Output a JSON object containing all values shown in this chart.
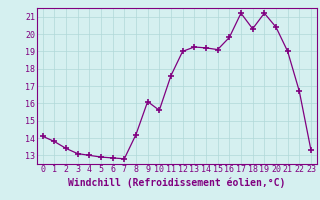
{
  "x": [
    0,
    1,
    2,
    3,
    4,
    5,
    6,
    7,
    8,
    9,
    10,
    11,
    12,
    13,
    14,
    15,
    16,
    17,
    18,
    19,
    20,
    21,
    22,
    23
  ],
  "y": [
    14.1,
    13.8,
    13.4,
    13.1,
    13.0,
    12.9,
    12.85,
    12.8,
    14.2,
    16.1,
    15.6,
    17.6,
    19.0,
    19.25,
    19.2,
    19.1,
    19.8,
    21.2,
    20.3,
    21.2,
    20.4,
    19.0,
    16.7,
    13.3
  ],
  "line_color": "#800080",
  "marker_color": "#800080",
  "bg_color": "#d5f0f0",
  "grid_color": "#b0d8d8",
  "xlabel": "Windchill (Refroidissement éolien,°C)",
  "xlabel_color": "#800080",
  "tick_color": "#800080",
  "ylim": [
    12.5,
    21.5
  ],
  "yticks": [
    13,
    14,
    15,
    16,
    17,
    18,
    19,
    20,
    21
  ],
  "xticks": [
    0,
    1,
    2,
    3,
    4,
    5,
    6,
    7,
    8,
    9,
    10,
    11,
    12,
    13,
    14,
    15,
    16,
    17,
    18,
    19,
    20,
    21,
    22,
    23
  ],
  "xlim": [
    -0.5,
    23.5
  ],
  "tick_fontsize": 6.0,
  "xlabel_fontsize": 7.0
}
